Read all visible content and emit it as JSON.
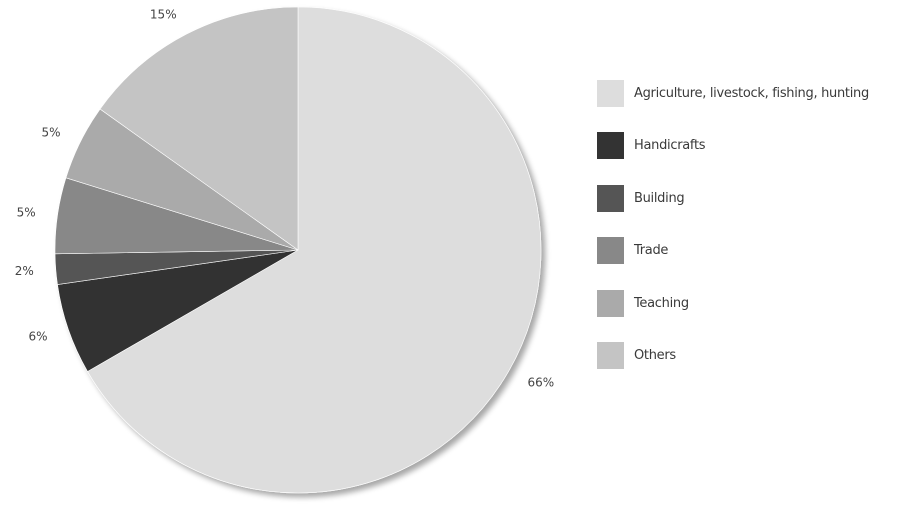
{
  "chart_data": {
    "type": "pie",
    "slices": [
      {
        "name": "Agriculture, livestock, fishing, hunting",
        "value": 66,
        "label": "66%",
        "color": "#dddddd"
      },
      {
        "name": "Handicrafts",
        "value": 6,
        "label": "6%",
        "color": "#333333"
      },
      {
        "name": "Building",
        "value": 2,
        "label": "2%",
        "color": "#555555"
      },
      {
        "name": "Trade",
        "value": 5,
        "label": "5%",
        "color": "#888888"
      },
      {
        "name": "Teaching",
        "value": 5,
        "label": "5%",
        "color": "#aaaaaa"
      },
      {
        "name": "Others",
        "value": 15,
        "label": "15%",
        "color": "#c4c4c4"
      }
    ],
    "legend_position": "right"
  },
  "legend": [
    {
      "label": "Agriculture, livestock, fishing, hunting",
      "color": "#dddddd"
    },
    {
      "label": "Handicrafts",
      "color": "#333333"
    },
    {
      "label": "Building",
      "color": "#555555"
    },
    {
      "label": "Trade",
      "color": "#888888"
    },
    {
      "label": "Teaching",
      "color": "#aaaaaa"
    },
    {
      "label": "Others",
      "color": "#c4c4c4"
    }
  ]
}
